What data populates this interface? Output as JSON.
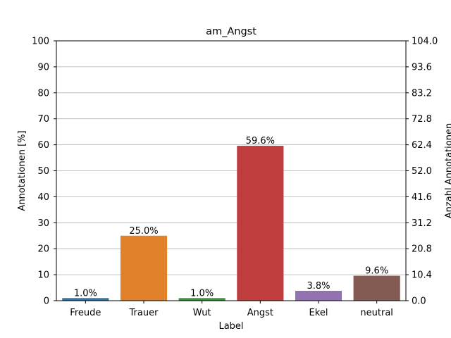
{
  "chart_data": {
    "type": "bar",
    "title": "am_Angst",
    "xlabel": "Label",
    "ylabel": "Annotationen [%]",
    "ylabel_right": "Anzahl Annotationen",
    "categories": [
      "Freude",
      "Trauer",
      "Wut",
      "Angst",
      "Ekel",
      "neutral"
    ],
    "values": [
      1.0,
      25.0,
      1.0,
      59.6,
      3.8,
      9.6
    ],
    "value_labels": [
      "1.0%",
      "25.0%",
      "1.0%",
      "59.6%",
      "3.8%",
      "9.6%"
    ],
    "colors": [
      "#3274a1",
      "#e1812c",
      "#3a923a",
      "#c03d3e",
      "#9372b2",
      "#845b53"
    ],
    "ylim": [
      0,
      100
    ],
    "yticks": [
      0,
      10,
      20,
      30,
      40,
      50,
      60,
      70,
      80,
      90,
      100
    ],
    "ylim_right": [
      0,
      104
    ],
    "yticks_right": [
      "0.0",
      "10.4",
      "20.8",
      "31.2",
      "41.6",
      "52.0",
      "62.4",
      "72.8",
      "83.2",
      "93.6",
      "104.0"
    ],
    "grid": "horizontal",
    "legend": "none"
  }
}
